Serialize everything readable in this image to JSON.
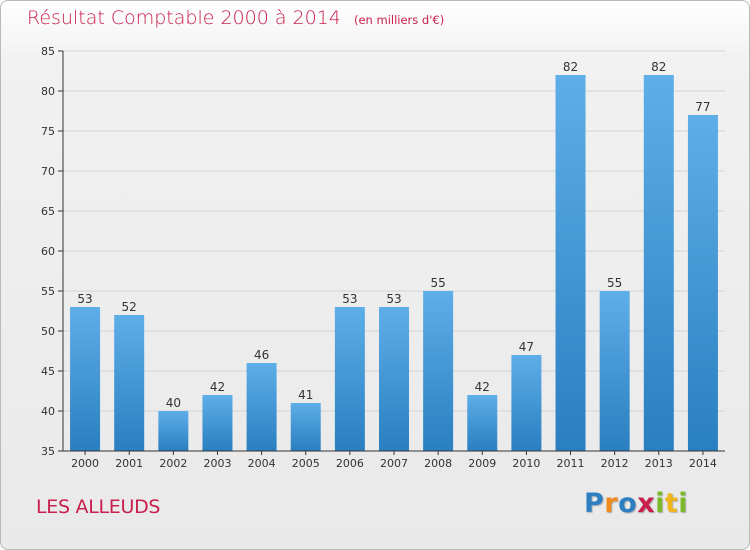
{
  "chart_data": {
    "type": "bar",
    "title": "Résultat Comptable 2000 à 2014",
    "subtitle": "(en milliers d'€)",
    "categories": [
      "2000",
      "2001",
      "2002",
      "2003",
      "2004",
      "2005",
      "2006",
      "2007",
      "2008",
      "2009",
      "2010",
      "2011",
      "2012",
      "2013",
      "2014"
    ],
    "values": [
      53,
      52,
      40,
      42,
      46,
      41,
      53,
      53,
      55,
      42,
      47,
      82,
      55,
      82,
      77
    ],
    "ylim": [
      35,
      85
    ],
    "yticks": [
      35,
      40,
      45,
      50,
      55,
      60,
      65,
      70,
      75,
      80,
      85
    ],
    "xlabel": "",
    "ylabel": "",
    "grid": "horizontal",
    "bar_color_top": "#5eaee8",
    "bar_color_bottom": "#2a7fc0"
  },
  "footer": {
    "commune": "LES ALLEUDS",
    "brand_letters": [
      "P",
      "r",
      "o",
      "x",
      "i",
      "t",
      "i"
    ],
    "brand_colors": [
      "#2e7fc1",
      "#f08a1c",
      "#2e7fc1",
      "#c8204d",
      "#7ab929",
      "#f0b41c",
      "#7ab929"
    ]
  },
  "colors": {
    "title": "#c8204d",
    "axis": "#333333",
    "grid": "#d4d4d4"
  }
}
